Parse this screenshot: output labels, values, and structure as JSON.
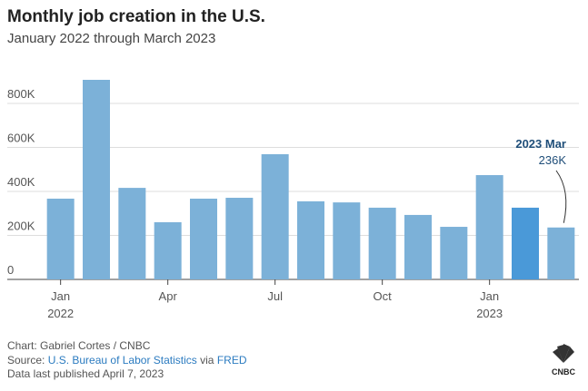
{
  "chart_data": {
    "type": "bar",
    "title": "Monthly job creation in the U.S.",
    "subtitle": "January 2022 through March 2023",
    "categories": [
      "Jan 2022",
      null,
      null,
      "Apr",
      null,
      null,
      "Jul",
      null,
      null,
      "Oct",
      null,
      null,
      "Jan 2023",
      null,
      null
    ],
    "values": [
      367,
      907,
      416,
      260,
      367,
      371,
      569,
      355,
      350,
      326,
      293,
      239,
      474,
      326,
      236
    ],
    "value_labels": [
      null,
      null,
      null,
      null,
      null,
      null,
      null,
      null,
      null,
      null,
      null,
      null,
      null,
      null,
      "236K"
    ],
    "colors": [
      "#7cb1d8",
      "#7cb1d8",
      "#7cb1d8",
      "#7cb1d8",
      "#7cb1d8",
      "#7cb1d8",
      "#7cb1d8",
      "#7cb1d8",
      "#7cb1d8",
      "#7cb1d8",
      "#7cb1d8",
      "#7cb1d8",
      "#7cb1d8",
      "#4a99d8",
      "#7cb1d8"
    ],
    "annotation": "2023 Mar",
    "ylim": [
      0,
      940
    ],
    "yticks": [
      0,
      {
        "value": 200,
        "label": "200K"
      },
      {
        "value": 400,
        "label": "400K"
      },
      {
        "value": 600,
        "label": "600K"
      },
      {
        "value": 800,
        "label": "800K"
      }
    ],
    "grid": true,
    "footer": {
      "credit": "Chart: Gabriel Cortes / CNBC",
      "source_prefix": "Source:",
      "source_link1": "U.S. Bureau of Labor Statistics",
      "source_mid": "via",
      "source_link2": "FRED",
      "published": "Data last published April 7, 2023",
      "logo": "CNBC"
    }
  }
}
